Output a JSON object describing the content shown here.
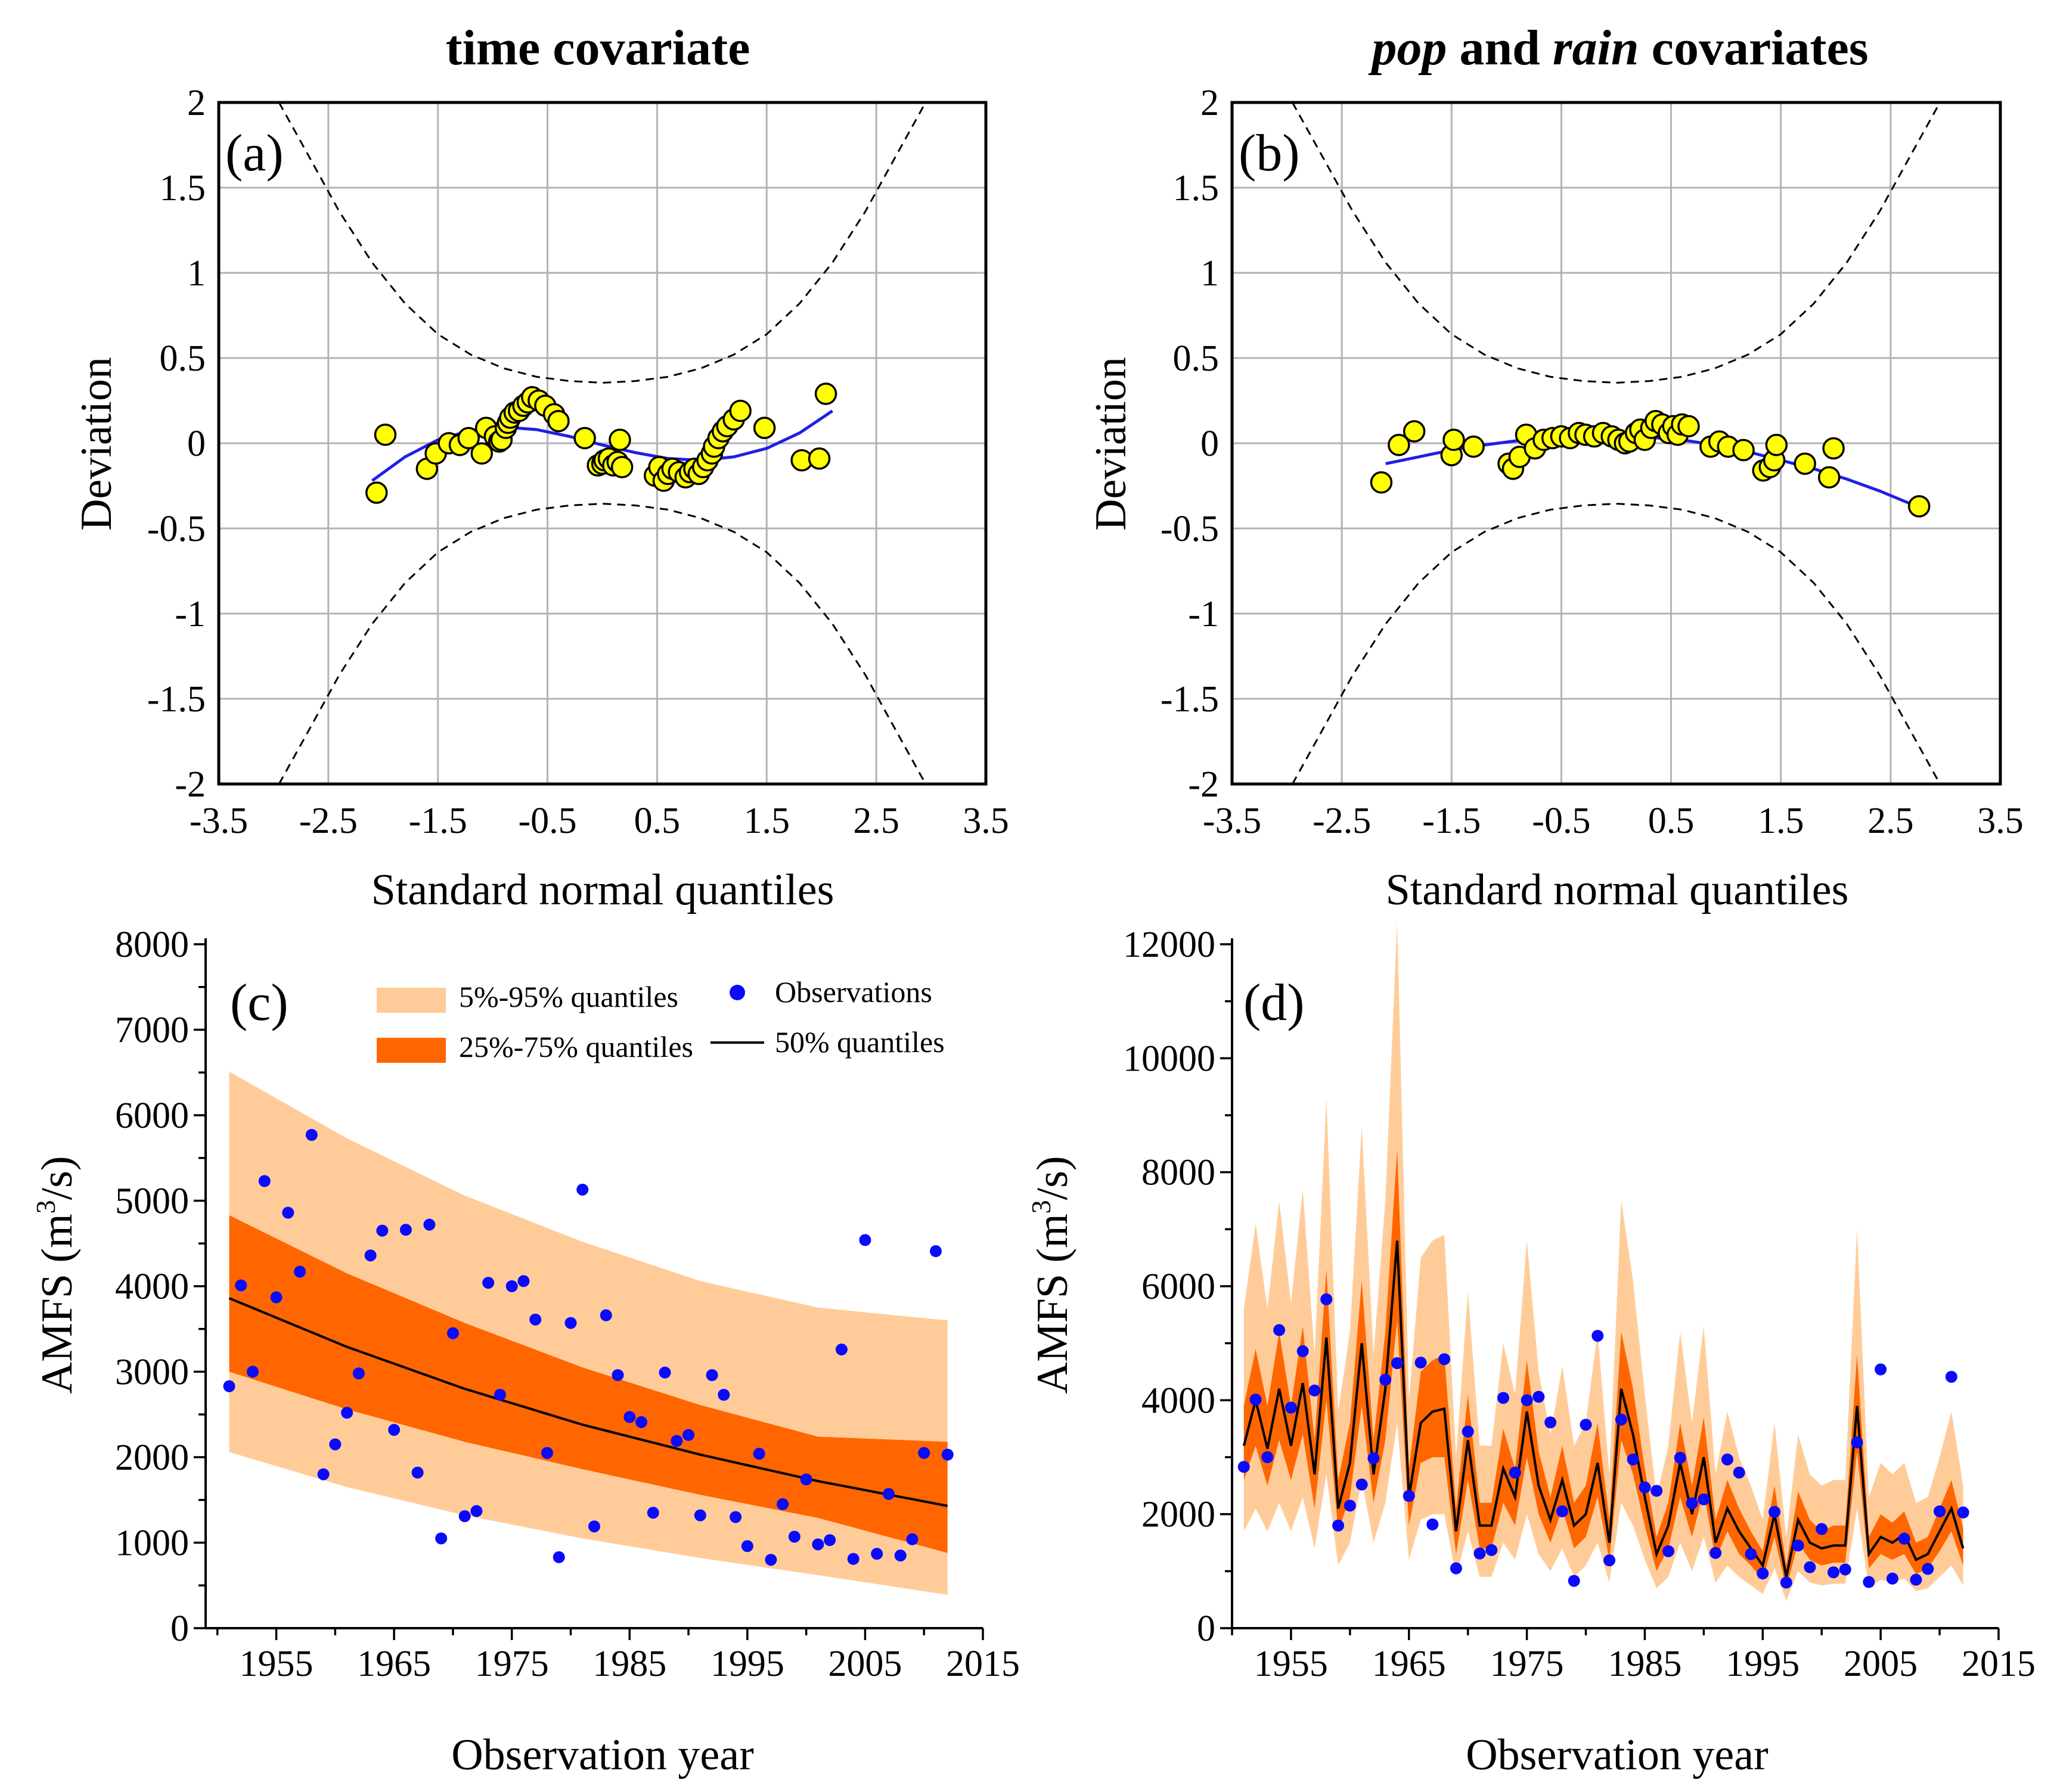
{
  "chart_data": [
    {
      "type": "scatter",
      "panel_label": "(a)",
      "title": "time covariate",
      "xlabel": "Standard normal quantiles",
      "ylabel": "Deviation",
      "xlim": [
        -3.5,
        3.5
      ],
      "ylim": [
        -2,
        2
      ],
      "xticks": [
        "-3.5",
        "-2.5",
        "-1.5",
        "-0.5",
        "0.5",
        "1.5",
        "2.5",
        "3.5"
      ],
      "yticks": [
        "2",
        "1.5",
        "1",
        "0.5",
        "0",
        "-0.5",
        "-1",
        "-1.5",
        "-2"
      ],
      "grid": true,
      "series": [
        {
          "name": "Deviation points",
          "color": "#ffff00",
          "x": [
            -2.06,
            -1.98,
            -1.6,
            -1.52,
            -1.4,
            -1.3,
            -1.22,
            -1.1,
            -1.06,
            -0.98,
            -0.94,
            -0.92,
            -0.88,
            -0.86,
            -0.84,
            -0.8,
            -0.76,
            -0.72,
            -0.68,
            -0.64,
            -0.58,
            -0.52,
            -0.44,
            -0.4,
            -0.16,
            -0.04,
            0.0,
            0.02,
            0.06,
            0.1,
            0.14,
            0.16,
            0.18,
            0.48,
            0.52,
            0.56,
            0.6,
            0.64,
            0.7,
            0.76,
            0.8,
            0.84,
            0.88,
            0.92,
            0.96,
            1.0,
            1.02,
            1.06,
            1.1,
            1.14,
            1.2,
            1.26,
            1.48,
            1.82,
            1.98,
            2.04
          ],
          "y": [
            -0.29,
            0.05,
            -0.15,
            -0.06,
            0.0,
            -0.01,
            0.03,
            -0.06,
            0.09,
            0.04,
            0.01,
            0.02,
            0.09,
            0.12,
            0.15,
            0.18,
            0.19,
            0.22,
            0.24,
            0.27,
            0.25,
            0.22,
            0.17,
            0.13,
            0.03,
            -0.13,
            -0.12,
            -0.1,
            -0.09,
            -0.13,
            -0.11,
            0.02,
            -0.14,
            -0.19,
            -0.14,
            -0.22,
            -0.18,
            -0.15,
            -0.17,
            -0.2,
            -0.17,
            -0.15,
            -0.18,
            -0.14,
            -0.1,
            -0.06,
            -0.02,
            0.03,
            0.07,
            0.1,
            0.14,
            0.19,
            0.09,
            -0.1,
            -0.09,
            0.29
          ]
        },
        {
          "name": "Cubic fit",
          "color": "#1f1fe6",
          "x": [
            -2.1,
            -1.8,
            -1.5,
            -1.2,
            -0.9,
            -0.6,
            -0.3,
            0.0,
            0.3,
            0.6,
            0.9,
            1.2,
            1.5,
            1.8,
            2.1
          ],
          "y": [
            -0.22,
            -0.08,
            0.02,
            0.075,
            0.095,
            0.08,
            0.04,
            -0.01,
            -0.055,
            -0.09,
            -0.1,
            -0.08,
            -0.03,
            0.06,
            0.19
          ]
        },
        {
          "name": "Confidence bounds",
          "color": "#000000",
          "style": "dashed",
          "x": [
            -2.95,
            -2.7,
            -2.4,
            -2.1,
            -1.8,
            -1.5,
            -1.2,
            -0.9,
            -0.6,
            -0.3,
            0.0,
            0.3,
            0.6,
            0.9,
            1.2,
            1.5,
            1.8,
            2.1,
            2.4,
            2.7,
            2.95
          ],
          "y": [
            2.0,
            1.71,
            1.36,
            1.06,
            0.82,
            0.64,
            0.52,
            0.44,
            0.39,
            0.365,
            0.355,
            0.365,
            0.39,
            0.44,
            0.52,
            0.64,
            0.82,
            1.06,
            1.36,
            1.71,
            2.0
          ]
        }
      ]
    },
    {
      "type": "scatter",
      "panel_label": "(b)",
      "title_parts": [
        "pop",
        " and ",
        "rain",
        " covariates"
      ],
      "xlabel": "Standard normal quantiles",
      "ylabel": "Deviation",
      "xlim": [
        -3.5,
        3.5
      ],
      "ylim": [
        -2,
        2
      ],
      "xticks": [
        "-3.5",
        "-2.5",
        "-1.5",
        "-0.5",
        "0.5",
        "1.5",
        "2.5",
        "3.5"
      ],
      "yticks": [
        "2",
        "1.5",
        "1",
        "0.5",
        "0",
        "-0.5",
        "-1",
        "-1.5",
        "-2"
      ],
      "grid": true,
      "series": [
        {
          "name": "Deviation points",
          "color": "#ffff00",
          "x": [
            -2.14,
            -1.98,
            -1.84,
            -1.5,
            -1.48,
            -1.3,
            -0.98,
            -0.94,
            -0.88,
            -0.82,
            -0.74,
            -0.66,
            -0.58,
            -0.5,
            -0.42,
            -0.34,
            -0.28,
            -0.2,
            -0.12,
            -0.04,
            0.02,
            0.08,
            0.12,
            0.18,
            0.22,
            0.26,
            0.32,
            0.36,
            0.42,
            0.48,
            0.52,
            0.56,
            0.6,
            0.66,
            0.86,
            0.94,
            1.02,
            1.16,
            1.34,
            1.4,
            1.44,
            1.46,
            1.72,
            1.94,
            1.98,
            2.76
          ],
          "y": [
            -0.23,
            -0.01,
            0.07,
            -0.07,
            0.02,
            -0.02,
            -0.12,
            -0.15,
            -0.08,
            0.05,
            -0.03,
            0.02,
            0.03,
            0.04,
            0.03,
            0.06,
            0.05,
            0.04,
            0.06,
            0.04,
            0.02,
            0.0,
            0.01,
            0.06,
            0.08,
            0.02,
            0.09,
            0.13,
            0.11,
            0.06,
            0.1,
            0.05,
            0.11,
            0.1,
            -0.02,
            0.01,
            -0.02,
            -0.04,
            -0.16,
            -0.14,
            -0.1,
            -0.01,
            -0.12,
            -0.2,
            -0.03,
            -0.37
          ]
        },
        {
          "name": "Quadratic fit",
          "color": "#1f1fe6",
          "x": [
            -2.1,
            -1.8,
            -1.5,
            -1.2,
            -0.9,
            -0.6,
            -0.3,
            0.0,
            0.3,
            0.6,
            0.9,
            1.2,
            1.5,
            1.8,
            2.1,
            2.4,
            2.7
          ],
          "y": [
            -0.12,
            -0.08,
            -0.04,
            -0.01,
            0.015,
            0.03,
            0.04,
            0.04,
            0.035,
            0.02,
            -0.01,
            -0.05,
            -0.1,
            -0.15,
            -0.21,
            -0.28,
            -0.36
          ]
        },
        {
          "name": "Confidence bounds",
          "color": "#000000",
          "style": "dashed",
          "x": [
            -2.95,
            -2.7,
            -2.4,
            -2.1,
            -1.8,
            -1.5,
            -1.2,
            -0.9,
            -0.6,
            -0.3,
            0.0,
            0.3,
            0.6,
            0.9,
            1.2,
            1.5,
            1.8,
            2.1,
            2.4,
            2.7,
            2.95
          ],
          "y": [
            2.0,
            1.71,
            1.36,
            1.06,
            0.82,
            0.64,
            0.52,
            0.44,
            0.39,
            0.365,
            0.355,
            0.365,
            0.39,
            0.44,
            0.52,
            0.64,
            0.82,
            1.06,
            1.36,
            1.71,
            2.0
          ]
        }
      ]
    },
    {
      "type": "area",
      "panel_label": "(c)",
      "xlabel": "Observation year",
      "ylabel_parts": [
        "AMFS (m",
        "3",
        "/s)"
      ],
      "xlim": [
        1949,
        2015
      ],
      "ylim": [
        0,
        8000
      ],
      "xticks": [
        "1955",
        "1965",
        "1975",
        "1985",
        "1995",
        "2005",
        "2015"
      ],
      "yticks": [
        "8000",
        "7000",
        "6000",
        "5000",
        "4000",
        "3000",
        "2000",
        "1000",
        "0"
      ],
      "grid": false,
      "legend": [
        "5%-95% quantiles",
        "25%-75% quantiles",
        "Observations",
        "50% quantiles"
      ],
      "legend_position": "top-right",
      "colors": {
        "q5_95": "#ffcc99",
        "q25_75": "#ff6600",
        "median": "#000000",
        "obs": "#0a0aff"
      },
      "band_x": [
        1951,
        1961,
        1971,
        1981,
        1991,
        2001,
        2012
      ],
      "q05": [
        2060,
        1650,
        1320,
        1050,
        820,
        620,
        390
      ],
      "q25": [
        3000,
        2560,
        2180,
        1860,
        1560,
        1290,
        880
      ],
      "q50": [
        3860,
        3290,
        2800,
        2380,
        2030,
        1720,
        1430
      ],
      "q75": [
        4830,
        4150,
        3570,
        3050,
        2610,
        2240,
        2180
      ],
      "q95": [
        6510,
        5730,
        5060,
        4520,
        4060,
        3750,
        3600
      ],
      "obs_year": [
        1951,
        1952,
        1953,
        1954,
        1955,
        1956,
        1957,
        1958,
        1959,
        1960,
        1961,
        1962,
        1963,
        1964,
        1965,
        1966,
        1967,
        1968,
        1969,
        1970,
        1971,
        1972,
        1973,
        1974,
        1975,
        1976,
        1977,
        1978,
        1979,
        1980,
        1981,
        1982,
        1983,
        1984,
        1985,
        1986,
        1987,
        1988,
        1989,
        1990,
        1991,
        1992,
        1993,
        1994,
        1995,
        1996,
        1997,
        1998,
        1999,
        2000,
        2001,
        2002,
        2003,
        2004,
        2005,
        2006,
        2007,
        2008,
        2009,
        2010,
        2011,
        2012
      ],
      "obs_value": [
        2830,
        4010,
        3000,
        5230,
        3870,
        4860,
        4170,
        5770,
        1800,
        2150,
        2520,
        2980,
        4360,
        4650,
        2320,
        4660,
        1820,
        4720,
        1050,
        3450,
        1310,
        1370,
        4040,
        2730,
        4000,
        4060,
        3610,
        2050,
        830,
        3570,
        5130,
        1190,
        3660,
        2960,
        2470,
        2410,
        1350,
        2990,
        2190,
        2260,
        1320,
        2960,
        2730,
        1300,
        960,
        2040,
        800,
        1450,
        1070,
        1740,
        980,
        1030,
        3260,
        810,
        4540,
        870,
        1570,
        850,
        1040,
        2050,
        4410,
        2030
      ]
    },
    {
      "type": "line",
      "panel_label": "(d)",
      "xlabel": "Observation year",
      "ylabel_parts": [
        "AMFS (m",
        "3",
        "/s)"
      ],
      "xlim": [
        1950,
        2015
      ],
      "ylim": [
        0,
        12000
      ],
      "xticks": [
        "1955",
        "1965",
        "1975",
        "1985",
        "1995",
        "2005",
        "2015"
      ],
      "yticks": [
        "12000",
        "10000",
        "8000",
        "6000",
        "4000",
        "2000",
        "0"
      ],
      "grid": false,
      "colors": {
        "q5_95": "#ffcc99",
        "q25_75": "#ff6600",
        "median": "#000000",
        "obs": "#0a0aff"
      },
      "year": [
        1951,
        1952,
        1953,
        1954,
        1955,
        1956,
        1957,
        1958,
        1959,
        1960,
        1961,
        1962,
        1963,
        1964,
        1965,
        1966,
        1967,
        1968,
        1969,
        1970,
        1971,
        1972,
        1973,
        1974,
        1975,
        1976,
        1977,
        1978,
        1979,
        1980,
        1981,
        1982,
        1983,
        1984,
        1985,
        1986,
        1987,
        1988,
        1989,
        1990,
        1991,
        1992,
        1993,
        1994,
        1995,
        1996,
        1997,
        1998,
        1999,
        2000,
        2001,
        2002,
        2003,
        2004,
        2005,
        2006,
        2007,
        2008,
        2009,
        2010,
        2011,
        2012
      ],
      "median": [
        3200,
        4000,
        3150,
        4200,
        3200,
        4300,
        2700,
        5100,
        2100,
        2900,
        5000,
        2700,
        4200,
        6800,
        2300,
        3600,
        3800,
        3850,
        1700,
        3300,
        1800,
        1800,
        2800,
        2300,
        3800,
        2500,
        1900,
        2600,
        1800,
        2000,
        2900,
        1500,
        4200,
        3400,
        2300,
        1300,
        1800,
        2900,
        2000,
        3000,
        1500,
        2100,
        1700,
        1400,
        1100,
        2000,
        900,
        1900,
        1500,
        1400,
        1450,
        1450,
        3900,
        1300,
        1600,
        1500,
        1650,
        1200,
        1300,
        1700,
        2100,
        1400
      ],
      "q25": [
        2600,
        3200,
        2500,
        3300,
        2600,
        3400,
        2100,
        4000,
        1700,
        2300,
        3900,
        2200,
        3300,
        5400,
        1800,
        2900,
        3000,
        3000,
        1300,
        2600,
        1400,
        1400,
        2200,
        1800,
        3000,
        2000,
        1500,
        2100,
        1400,
        1600,
        2300,
        1200,
        3300,
        2700,
        1800,
        1000,
        1400,
        2300,
        1600,
        2400,
        1200,
        1700,
        1300,
        1100,
        850,
        1600,
        700,
        1500,
        1200,
        1100,
        1150,
        1150,
        3100,
        1050,
        1300,
        1200,
        1300,
        950,
        1050,
        1350,
        1700,
        1100
      ],
      "q75": [
        3900,
        4900,
        3900,
        5200,
        3900,
        5300,
        3300,
        6300,
        2600,
        3600,
        6100,
        3300,
        5200,
        8400,
        2800,
        4500,
        4700,
        4800,
        2100,
        4100,
        2200,
        2200,
        3500,
        2800,
        4700,
        3100,
        2300,
        3200,
        2200,
        2500,
        3600,
        1900,
        5200,
        4200,
        2800,
        1600,
        2200,
        3600,
        2500,
        3700,
        1900,
        2600,
        2100,
        1700,
        1350,
        2500,
        1100,
        2400,
        1900,
        1700,
        1800,
        1800,
        4800,
        1600,
        2000,
        1850,
        2050,
        1500,
        1600,
        2100,
        2600,
        1750
      ],
      "q05": [
        1700,
        2100,
        1700,
        2200,
        1700,
        2300,
        1400,
        2700,
        1100,
        1500,
        2600,
        1500,
        2200,
        3600,
        1200,
        1900,
        2000,
        2000,
        900,
        1700,
        900,
        900,
        1500,
        1200,
        2000,
        1300,
        1000,
        1400,
        900,
        1100,
        1500,
        800,
        2200,
        1800,
        1200,
        700,
        900,
        1500,
        1000,
        1600,
        800,
        1100,
        900,
        750,
        600,
        1050,
        480,
        1000,
        800,
        750,
        780,
        780,
        2100,
        700,
        850,
        800,
        870,
        650,
        700,
        900,
        1100,
        750
      ],
      "q95": [
        5600,
        7100,
        5600,
        7500,
        5700,
        7700,
        4800,
        9300,
        3800,
        5200,
        8800,
        4800,
        7500,
        12400,
        4000,
        6500,
        6800,
        6900,
        3000,
        5900,
        3200,
        3200,
        5000,
        4100,
        6800,
        4500,
        3400,
        4600,
        3200,
        3600,
        5200,
        2700,
        7500,
        6100,
        4100,
        2300,
        3200,
        5200,
        3600,
        5300,
        2700,
        3800,
        3000,
        2500,
        1900,
        3600,
        1600,
        3400,
        2700,
        2500,
        2600,
        2600,
        7000,
        2300,
        2900,
        2700,
        2900,
        2200,
        2300,
        3000,
        3800,
        2500
      ],
      "obs_value": [
        2830,
        4010,
        3000,
        5230,
        3870,
        4860,
        4170,
        5770,
        1800,
        2150,
        2520,
        2980,
        4360,
        4650,
        2320,
        4660,
        1820,
        4720,
        1050,
        3450,
        1310,
        1370,
        4040,
        2730,
        4000,
        4060,
        3610,
        2050,
        830,
        3570,
        5130,
        1190,
        3660,
        2960,
        2470,
        2410,
        1350,
        2990,
        2190,
        2260,
        1320,
        2960,
        2730,
        1300,
        960,
        2040,
        800,
        1450,
        1070,
        1740,
        980,
        1030,
        3260,
        810,
        4540,
        870,
        1570,
        850,
        1040,
        2050,
        4410,
        2030
      ]
    }
  ]
}
